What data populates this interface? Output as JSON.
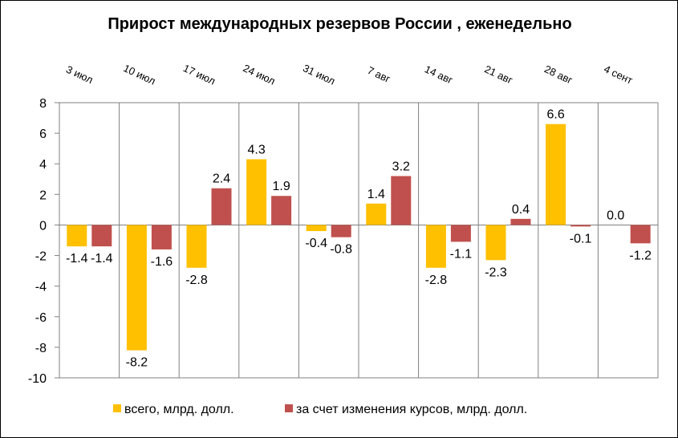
{
  "chart_data": {
    "type": "bar",
    "title": "Прирост международных резервов России , еженедельно",
    "xlabel": "",
    "ylabel": "",
    "ylim": [
      -10,
      8
    ],
    "yticks": [
      8,
      6,
      4,
      2,
      0,
      -2,
      -4,
      -6,
      -8,
      -10
    ],
    "categories": [
      "3 июл",
      "10 июл",
      "17 июл",
      "24 июл",
      "31 июл",
      "7 авг",
      "14 авг",
      "21 авг",
      "28 авг",
      "4 сент"
    ],
    "series": [
      {
        "name": "всего, млрд. долл.",
        "color": "#FFC000",
        "values": [
          -1.4,
          -8.2,
          -2.8,
          4.3,
          -0.4,
          1.4,
          -2.8,
          -2.3,
          6.6,
          0.0
        ],
        "labels": [
          "-1.4",
          "-8.2",
          "-2.8",
          "4.3",
          "-0.4",
          "1.4",
          "-2.8",
          "-2.3",
          "6.6",
          "0.0"
        ]
      },
      {
        "name": "за счет изменения курсов, млрд. долл.",
        "color": "#C0504D",
        "values": [
          -1.4,
          -1.6,
          2.4,
          1.9,
          -0.8,
          3.2,
          -1.1,
          0.4,
          -0.1,
          -1.2
        ],
        "labels": [
          "-1.4",
          "-1.6",
          "2.4",
          "1.9",
          "-0.8",
          "3.2",
          "-1.1",
          "0.4",
          "-0.1",
          "-1.2"
        ]
      }
    ],
    "grid": false,
    "vertical_category_dividers": true,
    "legend_position": "bottom"
  }
}
